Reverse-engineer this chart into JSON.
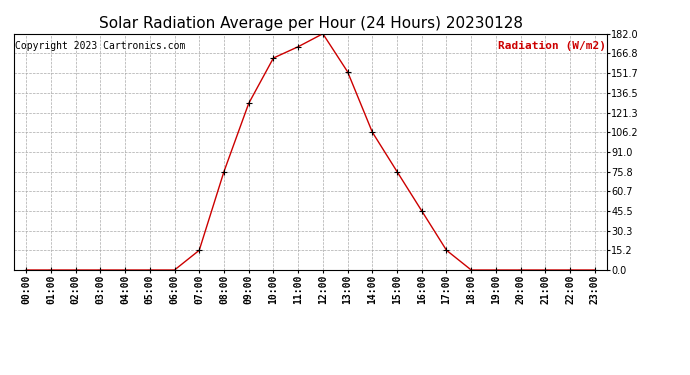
{
  "title": "Solar Radiation Average per Hour (24 Hours) 20230128",
  "copyright_text": "Copyright 2023 Cartronics.com",
  "legend_label": "Radiation (W/m2)",
  "hours": [
    "00:00",
    "01:00",
    "02:00",
    "03:00",
    "04:00",
    "05:00",
    "06:00",
    "07:00",
    "08:00",
    "09:00",
    "10:00",
    "11:00",
    "12:00",
    "13:00",
    "14:00",
    "15:00",
    "16:00",
    "17:00",
    "18:00",
    "19:00",
    "20:00",
    "21:00",
    "22:00",
    "23:00"
  ],
  "values": [
    0.0,
    0.0,
    0.0,
    0.0,
    0.0,
    0.0,
    0.0,
    15.2,
    75.8,
    128.3,
    163.3,
    172.0,
    182.0,
    152.7,
    106.2,
    75.8,
    45.5,
    15.2,
    0.0,
    0.0,
    0.0,
    0.0,
    0.0,
    0.0
  ],
  "line_color": "#cc0000",
  "marker_color": "#000000",
  "background_color": "#ffffff",
  "grid_color": "#aaaaaa",
  "title_color": "#000000",
  "copyright_color": "#000000",
  "legend_color": "#cc0000",
  "ylim": [
    0.0,
    182.0
  ],
  "ytick_values": [
    0.0,
    15.2,
    30.3,
    45.5,
    60.7,
    75.8,
    91.0,
    106.2,
    121.3,
    136.5,
    151.7,
    166.8,
    182.0
  ],
  "title_fontsize": 11,
  "copyright_fontsize": 7,
  "legend_fontsize": 8,
  "axis_fontsize": 7
}
